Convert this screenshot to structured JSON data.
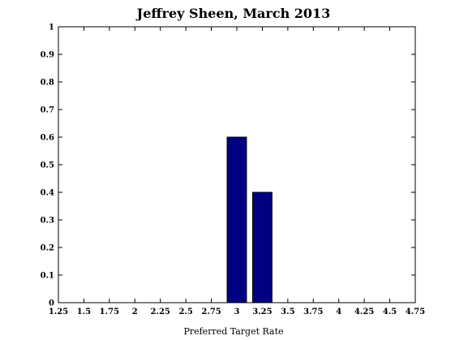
{
  "chart_data": {
    "type": "bar",
    "title": "Jeffrey Sheen, March 2013",
    "xlabel": "Preferred Target Rate",
    "ylabel": "",
    "x": [
      1.25,
      1.5,
      1.75,
      2,
      2.25,
      2.5,
      2.75,
      3,
      3.25,
      3.5,
      3.75,
      4,
      4.25,
      4.5,
      4.75
    ],
    "values": [
      0,
      0,
      0,
      0,
      0,
      0,
      0,
      0.6,
      0.4,
      0,
      0,
      0,
      0,
      0,
      0
    ],
    "xticks": [
      "1.25",
      "1.5",
      "1.75",
      "2",
      "2.25",
      "2.5",
      "2.75",
      "3",
      "3.25",
      "3.5",
      "3.75",
      "4",
      "4.25",
      "4.5",
      "4.75"
    ],
    "yticks": [
      "0",
      "0.1",
      "0.2",
      "0.3",
      "0.4",
      "0.5",
      "0.6",
      "0.7",
      "0.8",
      "0.9",
      "1"
    ],
    "xlim": [
      1.25,
      4.75
    ],
    "ylim": [
      0,
      1
    ],
    "bar_color": "#000080",
    "grid": false,
    "legend": "none"
  }
}
